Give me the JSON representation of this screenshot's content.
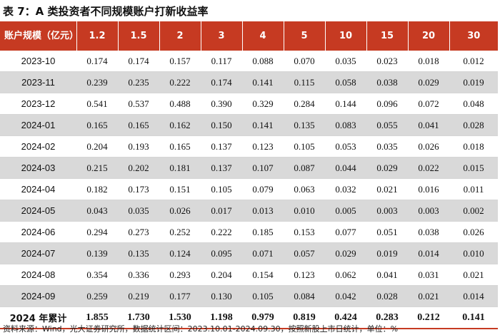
{
  "title": "表 7：A 类投资者不同规模账户打新收益率",
  "table": {
    "header": [
      "账户规模（亿元）",
      "1.2",
      "1.5",
      "2",
      "3",
      "4",
      "5",
      "10",
      "15",
      "20",
      "30"
    ],
    "rows": [
      [
        "2023-10",
        "0.174",
        "0.174",
        "0.157",
        "0.117",
        "0.088",
        "0.070",
        "0.035",
        "0.023",
        "0.018",
        "0.012"
      ],
      [
        "2023-11",
        "0.239",
        "0.235",
        "0.222",
        "0.174",
        "0.141",
        "0.115",
        "0.058",
        "0.038",
        "0.029",
        "0.019"
      ],
      [
        "2023-12",
        "0.541",
        "0.537",
        "0.488",
        "0.390",
        "0.329",
        "0.284",
        "0.144",
        "0.096",
        "0.072",
        "0.048"
      ],
      [
        "2024-01",
        "0.165",
        "0.165",
        "0.162",
        "0.150",
        "0.141",
        "0.135",
        "0.083",
        "0.055",
        "0.041",
        "0.028"
      ],
      [
        "2024-02",
        "0.204",
        "0.193",
        "0.165",
        "0.137",
        "0.123",
        "0.105",
        "0.053",
        "0.035",
        "0.026",
        "0.018"
      ],
      [
        "2024-03",
        "0.215",
        "0.202",
        "0.181",
        "0.137",
        "0.107",
        "0.087",
        "0.044",
        "0.029",
        "0.022",
        "0.015"
      ],
      [
        "2024-04",
        "0.182",
        "0.173",
        "0.151",
        "0.105",
        "0.079",
        "0.063",
        "0.032",
        "0.021",
        "0.016",
        "0.011"
      ],
      [
        "2024-05",
        "0.043",
        "0.035",
        "0.026",
        "0.017",
        "0.013",
        "0.010",
        "0.005",
        "0.003",
        "0.003",
        "0.002"
      ],
      [
        "2024-06",
        "0.294",
        "0.273",
        "0.252",
        "0.222",
        "0.185",
        "0.153",
        "0.077",
        "0.051",
        "0.038",
        "0.026"
      ],
      [
        "2024-07",
        "0.139",
        "0.135",
        "0.124",
        "0.095",
        "0.071",
        "0.057",
        "0.029",
        "0.019",
        "0.014",
        "0.010"
      ],
      [
        "2024-08",
        "0.354",
        "0.336",
        "0.293",
        "0.204",
        "0.154",
        "0.123",
        "0.062",
        "0.041",
        "0.031",
        "0.021"
      ],
      [
        "2024-09",
        "0.259",
        "0.219",
        "0.177",
        "0.130",
        "0.105",
        "0.084",
        "0.042",
        "0.028",
        "0.021",
        "0.014"
      ]
    ],
    "total_row": [
      "2024 年累计",
      "1.855",
      "1.730",
      "1.530",
      "1.198",
      "0.979",
      "0.819",
      "0.424",
      "0.283",
      "0.212",
      "0.141"
    ]
  },
  "footnote": "资料来源：Wind，光大证券研究所，数据统计区间：2023.10.01-2024.09.30，按照新股上市日统计，单位：%",
  "colors": {
    "header_bg": "#c63a22",
    "header_text": "#ffffff",
    "shaded_row": "#d9d9d9"
  }
}
